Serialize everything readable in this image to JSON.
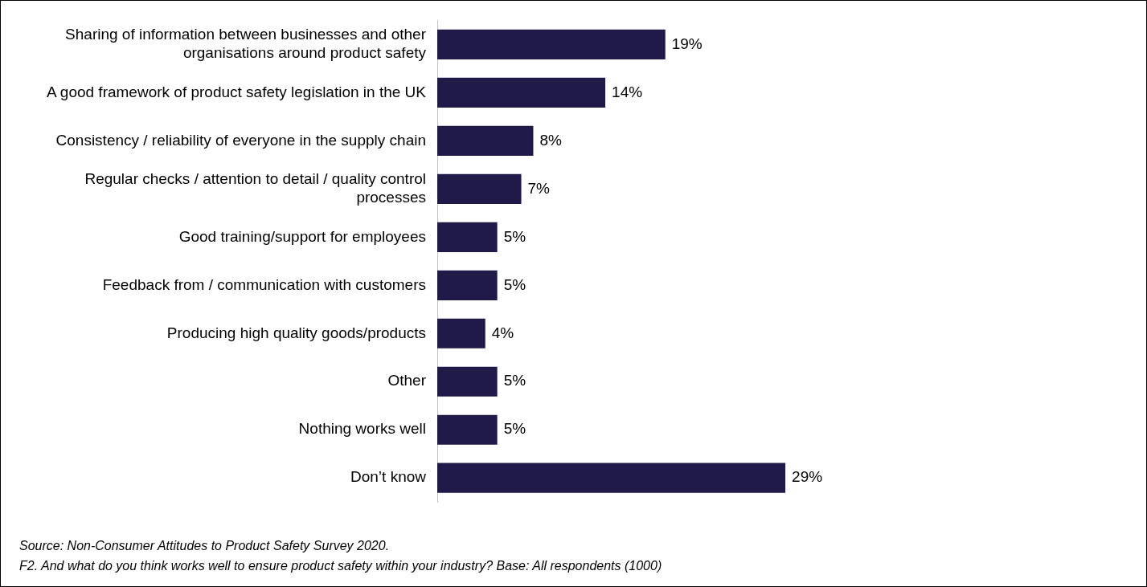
{
  "chart_data": {
    "type": "bar",
    "orientation": "horizontal",
    "categories": [
      "Sharing of information between businesses and other organisations around product safety",
      "A good framework of product safety legislation in the UK",
      "Consistency / reliability of everyone in the supply chain",
      "Regular checks / attention to detail / quality control processes",
      "Good training/support for employees",
      "Feedback from / communication with customers",
      "Producing high quality goods/products",
      "Other",
      "Nothing works well",
      "Don’t know"
    ],
    "values": [
      19,
      14,
      8,
      7,
      5,
      5,
      4,
      5,
      5,
      29
    ],
    "value_labels": [
      "19%",
      "14%",
      "8%",
      "7%",
      "5%",
      "5%",
      "4%",
      "5%",
      "5%",
      "29%"
    ],
    "color": "#1f1a47",
    "grid": false,
    "legend": false,
    "tick_labels": "y",
    "annotations": [
      "Source: Non-Consumer Attitudes to Product Safety Survey 2020.",
      "F2. And what do you think works well to ensure product safety within your industry? Base: All respondents (1000)"
    ]
  }
}
